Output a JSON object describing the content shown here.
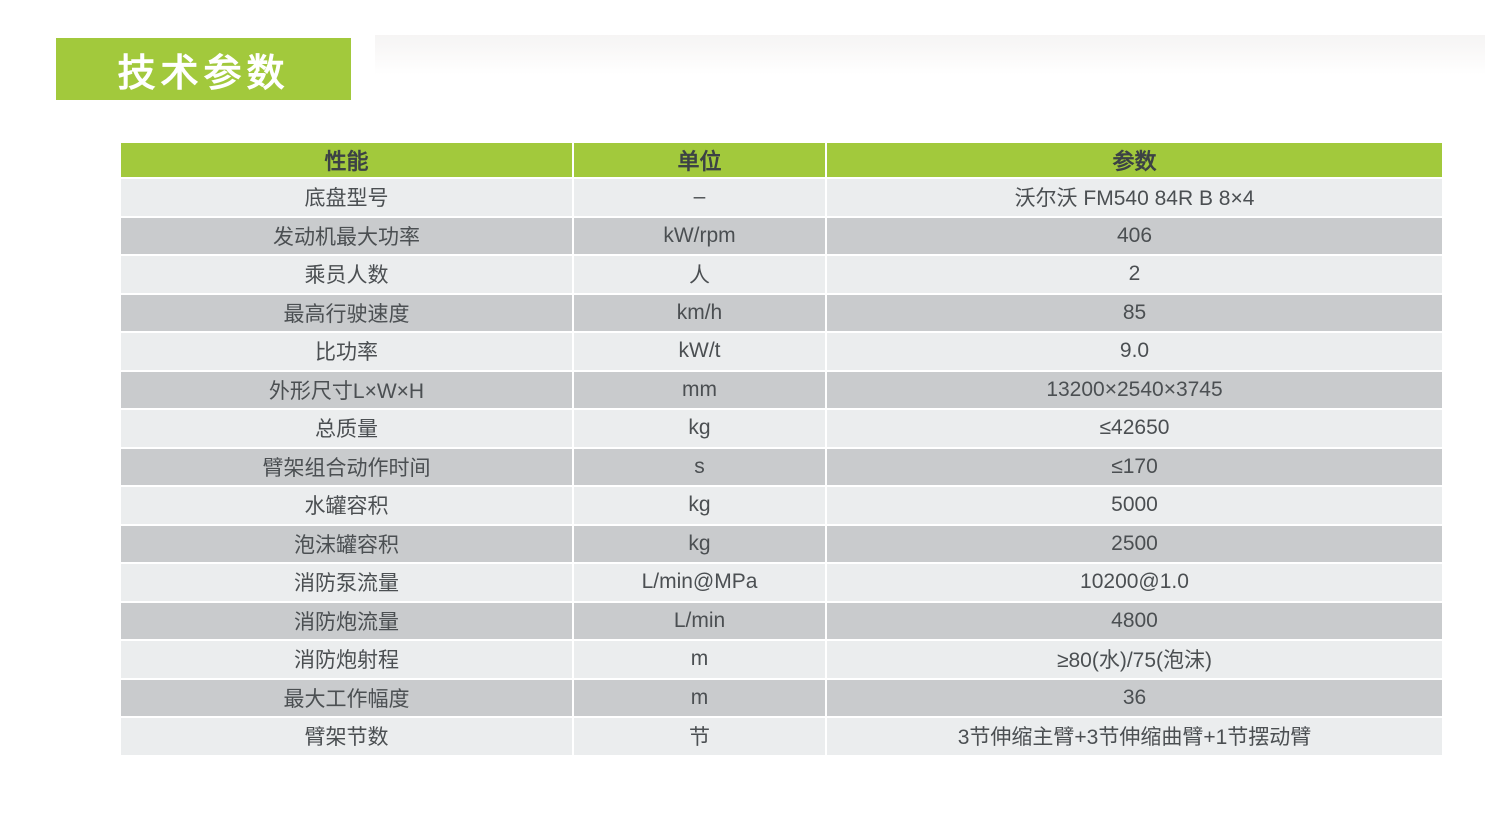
{
  "page": {
    "title_badge": "技术参数"
  },
  "colors": {
    "accent_green": "#a2c93c",
    "row_light": "#ebedee",
    "row_dark": "#c9cbcd",
    "header_text": "#3c4245",
    "cell_text": "#4b4f52",
    "badge_text": "#ffffff"
  },
  "table": {
    "headers": [
      "性能",
      "单位",
      "参数"
    ],
    "rows": [
      {
        "name": "底盘型号",
        "unit": "–",
        "value": "沃尔沃  FM540 84R B 8×4"
      },
      {
        "name": "发动机最大功率",
        "unit": "kW/rpm",
        "value": "406"
      },
      {
        "name": "乘员人数",
        "unit": "人",
        "value": "2"
      },
      {
        "name": "最高行驶速度",
        "unit": "km/h",
        "value": "85"
      },
      {
        "name": "比功率",
        "unit": "kW/t",
        "value": "9.0"
      },
      {
        "name": "外形尺寸L×W×H",
        "unit": "mm",
        "value": "13200×2540×3745"
      },
      {
        "name": "总质量",
        "unit": "kg",
        "value": "≤42650"
      },
      {
        "name": "臂架组合动作时间",
        "unit": "s",
        "value": "≤170"
      },
      {
        "name": "水罐容积",
        "unit": "kg",
        "value": "5000"
      },
      {
        "name": "泡沫罐容积",
        "unit": "kg",
        "value": "2500"
      },
      {
        "name": "消防泵流量",
        "unit": "L/min@MPa",
        "value": "10200@1.0"
      },
      {
        "name": "消防炮流量",
        "unit": "L/min",
        "value": "4800"
      },
      {
        "name": "消防炮射程",
        "unit": "m",
        "value": "≥80(水)/75(泡沫)"
      },
      {
        "name": "最大工作幅度",
        "unit": "m",
        "value": "36"
      },
      {
        "name": "臂架节数",
        "unit": "节",
        "value": "3节伸缩主臂+3节伸缩曲臂+1节摆动臂"
      }
    ]
  }
}
